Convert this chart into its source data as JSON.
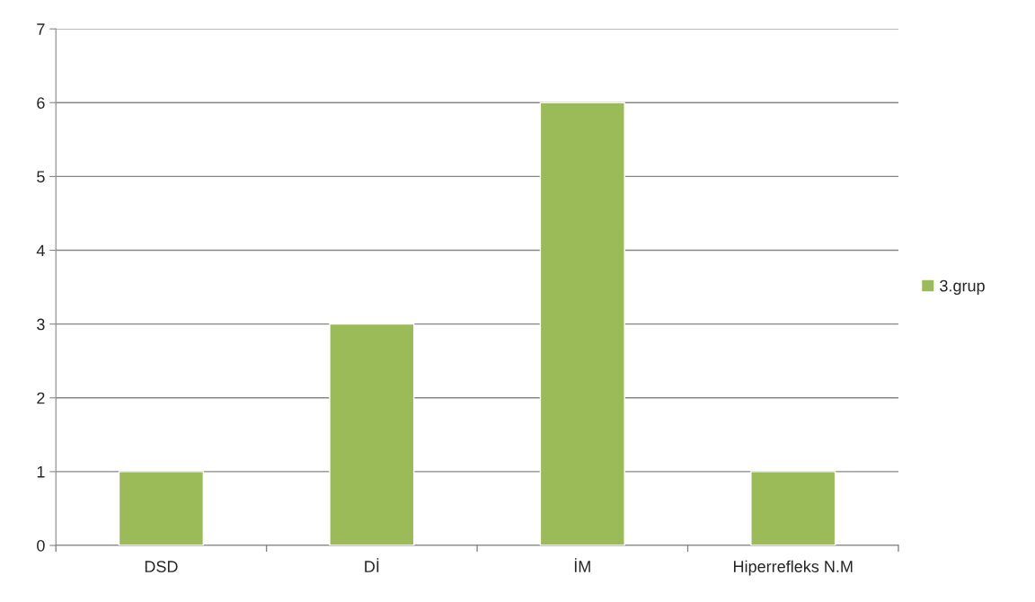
{
  "chart_data": {
    "type": "bar",
    "categories": [
      "DSD",
      "Dİ",
      "İM",
      "Hiperrefleks N.M"
    ],
    "series": [
      {
        "name": "3.grup",
        "color": "#9bbb59",
        "values": [
          1,
          3,
          6,
          1
        ]
      }
    ],
    "ylim": [
      0,
      7
    ],
    "yticks": [
      0,
      1,
      2,
      3,
      4,
      5,
      6,
      7
    ],
    "grid": "y",
    "legend": "right"
  }
}
